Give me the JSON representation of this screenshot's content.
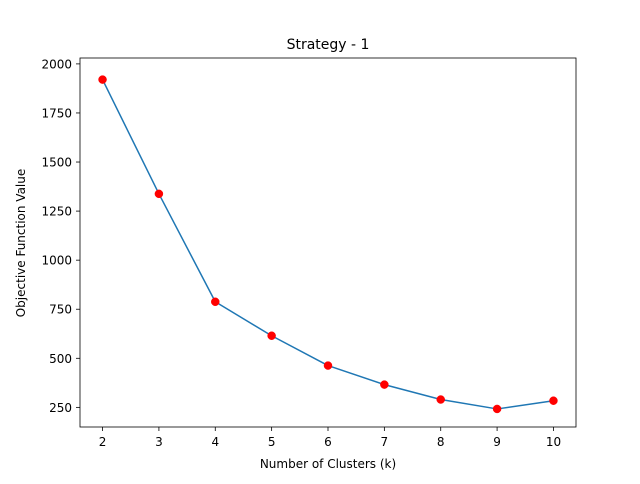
{
  "chart_data": {
    "type": "line",
    "title": "Strategy - 1",
    "xlabel": "Number of Clusters (k)",
    "ylabel": "Objective Function Value",
    "x": [
      2,
      3,
      4,
      5,
      6,
      7,
      8,
      9,
      10
    ],
    "series": [
      {
        "values": [
          1920,
          1338,
          788,
          615,
          463,
          366,
          290,
          242,
          284
        ],
        "line_color": "#1f77b4",
        "marker_color": "#ff0000"
      }
    ],
    "xticks": [
      2,
      3,
      4,
      5,
      6,
      7,
      8,
      9,
      10
    ],
    "yticks": [
      250,
      500,
      750,
      1000,
      1250,
      1500,
      1750,
      2000
    ],
    "xlim": [
      1.6,
      10.4
    ],
    "ylim": [
      150,
      2030
    ],
    "grid": false,
    "legend": "none"
  }
}
